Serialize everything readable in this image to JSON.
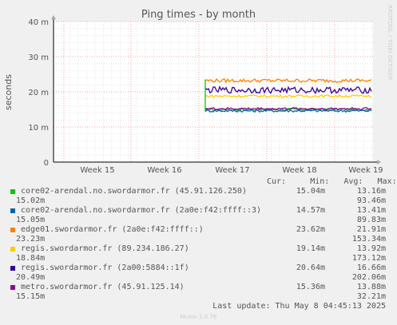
{
  "chart_data": {
    "type": "line",
    "title": "Ping times - by month",
    "ylabel": "seconds",
    "side_label": "RRDTOOL / TOBI OETIKER",
    "y_ticks": [
      "0",
      "10 m",
      "20 m",
      "30 m",
      "40 m"
    ],
    "ylim": [
      0,
      40
    ],
    "x_ticks": [
      "Week 15",
      "Week 16",
      "Week 17",
      "Week 18",
      "Week 19"
    ],
    "xlim": [
      0,
      100
    ],
    "grid": true,
    "legend_headers": [
      "Cur:",
      "Min:",
      "Avg:",
      "Max:"
    ],
    "series": [
      {
        "name": "core02-arendal.no.swordarmor.fr (45.91.126.250)",
        "color": "#00cc00",
        "level": 15.0,
        "cur": "15.04m",
        "min": "13.16m",
        "avg": "15.02m",
        "max": "93.46m"
      },
      {
        "name": "core02-arendal.no.swordarmor.fr (2a0e:f42:ffff::3)",
        "color": "#0066b3",
        "level": 14.6,
        "cur": "14.57m",
        "min": "13.41m",
        "avg": "15.05m",
        "max": "89.83m"
      },
      {
        "name": "edge01.swordarmor.fr (2a0e:f42:ffff::)",
        "color": "#ff8000",
        "level": 23.2,
        "cur": "23.62m",
        "min": "21.91m",
        "avg": "23.23m",
        "max": "153.34m"
      },
      {
        "name": "regis.swordarmor.fr (89.234.186.27)",
        "color": "#ffcc00",
        "level": 18.8,
        "cur": "19.14m",
        "min": "13.92m",
        "avg": "18.84m",
        "max": "173.12m"
      },
      {
        "name": "regis.swordarmor.fr (2a00:5884::1f)",
        "color": "#330099",
        "level": 20.5,
        "cur": "20.64m",
        "min": "16.66m",
        "avg": "20.49m",
        "max": "202.06m"
      },
      {
        "name": "metro.swordarmor.fr (45.91.125.14)",
        "color": "#990099",
        "level": 15.2,
        "cur": "15.36m",
        "min": "13.88m",
        "avg": "15.15m",
        "max": "32.21m"
      }
    ]
  },
  "footer": {
    "last_update": "Last update: Thu May  8 04:45:13 2025",
    "munin": "Munin 2.0.76"
  }
}
